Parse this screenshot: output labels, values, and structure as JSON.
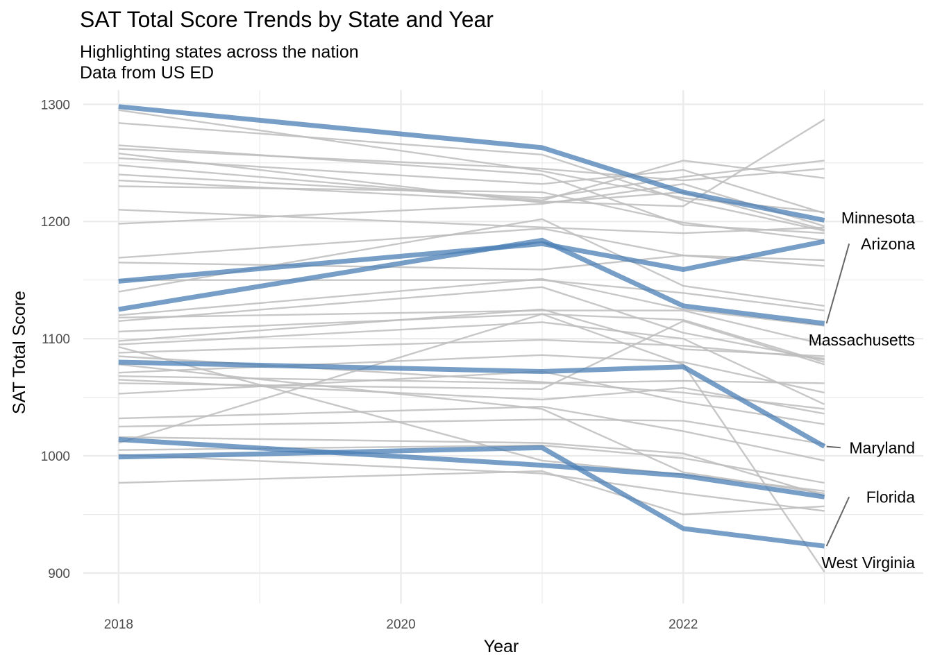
{
  "chart_data": {
    "type": "line",
    "title": "SAT Total Score Trends by State and Year",
    "subtitle_lines": [
      "Highlighting states across the nation",
      "Data from US ED"
    ],
    "xlabel": "Year",
    "ylabel": "SAT Total Score",
    "xlim": [
      2017.75,
      2023.7
    ],
    "ylim": [
      874,
      1312
    ],
    "x_ticks": [
      2018,
      2020,
      2022
    ],
    "y_ticks": [
      900,
      1000,
      1100,
      1200,
      1300
    ],
    "grid": true,
    "x": [
      2018,
      2019,
      2020,
      2021,
      2022,
      2023
    ],
    "colors": {
      "highlight": "#4a7db4",
      "background": "#bdbdbd",
      "panel_grid": "#ebebeb",
      "leader": "#666666"
    },
    "highlighted_series": [
      {
        "name": "Minnesota",
        "points": [
          [
            2018,
            1298
          ],
          [
            2021,
            1263
          ],
          [
            2022,
            1225
          ],
          [
            2023,
            1201
          ]
        ]
      },
      {
        "name": "Arizona",
        "points": [
          [
            2018,
            1125
          ],
          [
            2021,
            1184
          ],
          [
            2022,
            1128
          ],
          [
            2023,
            1113
          ]
        ]
      },
      {
        "name": "Massachusetts",
        "points": [
          [
            2018,
            1149
          ],
          [
            2021,
            1181
          ],
          [
            2022,
            1159
          ],
          [
            2023,
            1183
          ]
        ]
      },
      {
        "name": "Maryland",
        "points": [
          [
            2018,
            1080
          ],
          [
            2021,
            1072
          ],
          [
            2022,
            1076
          ],
          [
            2023,
            1008
          ]
        ]
      },
      {
        "name": "Florida",
        "points": [
          [
            2018,
            999
          ],
          [
            2021,
            1007
          ],
          [
            2022,
            938
          ],
          [
            2023,
            923
          ]
        ]
      },
      {
        "name": "West Virginia",
        "points": [
          [
            2018,
            1014
          ],
          [
            2021,
            992
          ],
          [
            2022,
            983
          ],
          [
            2023,
            965
          ]
        ]
      }
    ],
    "annotations": [
      {
        "text": "Minnesota",
        "y": 1203,
        "leader": false
      },
      {
        "text": "Arizona",
        "y": 1181,
        "leader": true
      },
      {
        "text": "Massachusetts",
        "y": 1099,
        "leader": false
      },
      {
        "text": "Maryland",
        "y": 1007,
        "leader": true
      },
      {
        "text": "Florida",
        "y": 965,
        "leader": true
      },
      {
        "text": "West Virginia",
        "y": 909,
        "leader": false
      }
    ],
    "background_series": [
      [
        [
          2018,
          1295
        ],
        [
          2021,
          1243
        ],
        [
          2022,
          1220
        ],
        [
          2023,
          1208
        ]
      ],
      [
        [
          2018,
          1284
        ],
        [
          2021,
          1257
        ],
        [
          2022,
          1218
        ],
        [
          2023,
          1192
        ]
      ],
      [
        [
          2018,
          1265
        ],
        [
          2021,
          1240
        ],
        [
          2022,
          1197
        ],
        [
          2023,
          1190
        ]
      ],
      [
        [
          2018,
          1262
        ],
        [
          2021,
          1245
        ],
        [
          2022,
          1235
        ],
        [
          2023,
          1245
        ]
      ],
      [
        [
          2018,
          1258
        ],
        [
          2021,
          1216
        ],
        [
          2022,
          1225
        ],
        [
          2023,
          1193
        ]
      ],
      [
        [
          2018,
          1254
        ],
        [
          2021,
          1232
        ],
        [
          2022,
          1244
        ],
        [
          2023,
          1207
        ]
      ],
      [
        [
          2018,
          1248
        ],
        [
          2021,
          1218
        ],
        [
          2022,
          1252
        ],
        [
          2023,
          1237
        ]
      ],
      [
        [
          2018,
          1240
        ],
        [
          2021,
          1220
        ],
        [
          2022,
          1238
        ],
        [
          2023,
          1252
        ]
      ],
      [
        [
          2018,
          1235
        ],
        [
          2021,
          1217
        ],
        [
          2022,
          1213
        ],
        [
          2023,
          1287
        ]
      ],
      [
        [
          2018,
          1230
        ],
        [
          2021,
          1225
        ],
        [
          2022,
          1199
        ],
        [
          2023,
          1184
        ]
      ],
      [
        [
          2018,
          1210
        ],
        [
          2021,
          1195
        ],
        [
          2022,
          1190
        ],
        [
          2023,
          1195
        ]
      ],
      [
        [
          2018,
          1198
        ],
        [
          2021,
          1215
        ],
        [
          2022,
          1232
        ],
        [
          2023,
          1196
        ]
      ],
      [
        [
          2018,
          1169
        ],
        [
          2021,
          1194
        ],
        [
          2022,
          1171
        ],
        [
          2023,
          1162
        ]
      ],
      [
        [
          2018,
          1165
        ],
        [
          2021,
          1159
        ],
        [
          2022,
          1171
        ],
        [
          2023,
          1167
        ]
      ],
      [
        [
          2018,
          1150
        ],
        [
          2021,
          1150
        ],
        [
          2022,
          1139
        ],
        [
          2023,
          1124
        ]
      ],
      [
        [
          2018,
          1140
        ],
        [
          2021,
          1202
        ],
        [
          2022,
          1145
        ],
        [
          2023,
          1128
        ]
      ],
      [
        [
          2018,
          1120
        ],
        [
          2021,
          1151
        ],
        [
          2022,
          1125
        ],
        [
          2023,
          1111
        ]
      ],
      [
        [
          2018,
          1118
        ],
        [
          2021,
          1124
        ],
        [
          2022,
          1124
        ],
        [
          2023,
          1095
        ]
      ],
      [
        [
          2018,
          1115
        ],
        [
          2021,
          1144
        ],
        [
          2022,
          1105
        ],
        [
          2023,
          1082
        ]
      ],
      [
        [
          2018,
          1106
        ],
        [
          2021,
          1121
        ],
        [
          2022,
          1116
        ],
        [
          2023,
          1080
        ]
      ],
      [
        [
          2018,
          1098
        ],
        [
          2021,
          1125
        ],
        [
          2022,
          1091
        ],
        [
          2023,
          1085
        ]
      ],
      [
        [
          2018,
          1095
        ],
        [
          2021,
          1114
        ],
        [
          2022,
          1100
        ],
        [
          2023,
          1044
        ]
      ],
      [
        [
          2018,
          1088
        ],
        [
          2021,
          1099
        ],
        [
          2022,
          1094
        ],
        [
          2023,
          1083
        ]
      ],
      [
        [
          2018,
          1085
        ],
        [
          2021,
          1063
        ],
        [
          2022,
          1054
        ],
        [
          2023,
          1040
        ]
      ],
      [
        [
          2018,
          1071
        ],
        [
          2021,
          1086
        ],
        [
          2022,
          1080
        ],
        [
          2023,
          1054
        ]
      ],
      [
        [
          2018,
          1068
        ],
        [
          2021,
          1062
        ],
        [
          2022,
          1064
        ],
        [
          2023,
          1062
        ]
      ],
      [
        [
          2018,
          1065
        ],
        [
          2021,
          1048
        ],
        [
          2022,
          1058
        ],
        [
          2023,
          1036
        ]
      ],
      [
        [
          2018,
          1062
        ],
        [
          2021,
          1057
        ],
        [
          2022,
          1115
        ],
        [
          2023,
          1078
        ]
      ],
      [
        [
          2018,
          1053
        ],
        [
          2021,
          1072
        ],
        [
          2022,
          1046
        ],
        [
          2023,
          1027
        ]
      ],
      [
        [
          2018,
          1032
        ],
        [
          2021,
          1042
        ],
        [
          2022,
          1021
        ],
        [
          2023,
          996
        ]
      ],
      [
        [
          2018,
          1025
        ],
        [
          2021,
          1031
        ],
        [
          2022,
          1030
        ],
        [
          2023,
          1010
        ]
      ],
      [
        [
          2018,
          1016
        ],
        [
          2021,
          1011
        ],
        [
          2022,
          1002
        ],
        [
          2023,
          966
        ]
      ],
      [
        [
          2018,
          1011
        ],
        [
          2021,
          1121
        ],
        [
          2022,
          1078
        ],
        [
          2023,
          901
        ]
      ],
      [
        [
          2018,
          1005
        ],
        [
          2021,
          1009
        ],
        [
          2022,
          998
        ],
        [
          2023,
          977
        ]
      ],
      [
        [
          2018,
          1001
        ],
        [
          2021,
          985
        ],
        [
          2022,
          968
        ],
        [
          2023,
          953
        ]
      ],
      [
        [
          2018,
          977
        ],
        [
          2021,
          987
        ],
        [
          2022,
          950
        ],
        [
          2023,
          957
        ]
      ],
      [
        [
          2018,
          1093
        ],
        [
          2021,
          996
        ],
        [
          2022,
          984
        ],
        [
          2023,
          970
        ]
      ],
      [
        [
          2018,
          1078
        ],
        [
          2021,
          1040
        ],
        [
          2022,
          986
        ],
        [
          2023,
          968
        ]
      ]
    ]
  }
}
